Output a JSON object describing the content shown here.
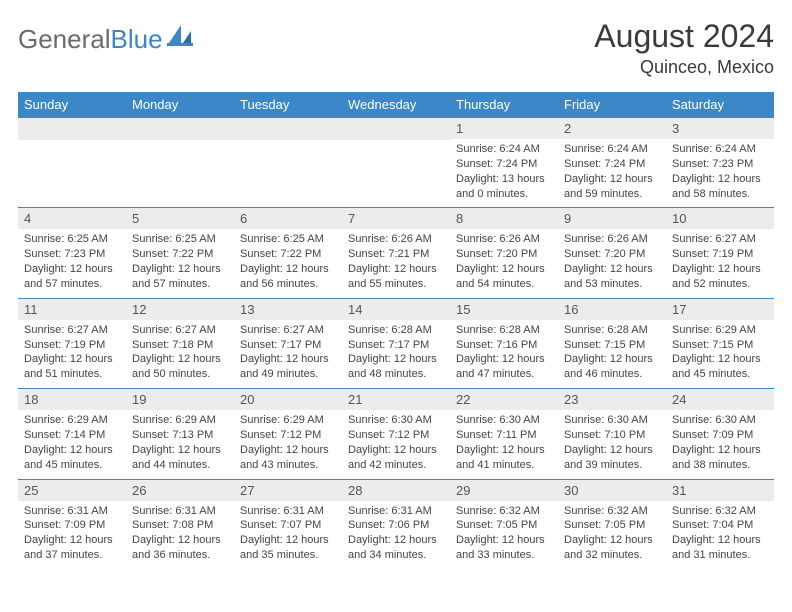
{
  "logo": {
    "textA": "General",
    "textB": "Blue"
  },
  "title": "August 2024",
  "subtitle": "Quinceo, Mexico",
  "colors": {
    "header_bg": "#3b87c8",
    "header_fg": "#ffffff",
    "daynum_bg": "#ececec",
    "row_border": "#3b87c8",
    "text": "#444444"
  },
  "weekdays": [
    "Sunday",
    "Monday",
    "Tuesday",
    "Wednesday",
    "Thursday",
    "Friday",
    "Saturday"
  ],
  "weeks": [
    [
      null,
      null,
      null,
      null,
      {
        "n": "1",
        "sr": "6:24 AM",
        "ss": "7:24 PM",
        "dl": "13 hours and 0 minutes."
      },
      {
        "n": "2",
        "sr": "6:24 AM",
        "ss": "7:24 PM",
        "dl": "12 hours and 59 minutes."
      },
      {
        "n": "3",
        "sr": "6:24 AM",
        "ss": "7:23 PM",
        "dl": "12 hours and 58 minutes."
      }
    ],
    [
      {
        "n": "4",
        "sr": "6:25 AM",
        "ss": "7:23 PM",
        "dl": "12 hours and 57 minutes."
      },
      {
        "n": "5",
        "sr": "6:25 AM",
        "ss": "7:22 PM",
        "dl": "12 hours and 57 minutes."
      },
      {
        "n": "6",
        "sr": "6:25 AM",
        "ss": "7:22 PM",
        "dl": "12 hours and 56 minutes."
      },
      {
        "n": "7",
        "sr": "6:26 AM",
        "ss": "7:21 PM",
        "dl": "12 hours and 55 minutes."
      },
      {
        "n": "8",
        "sr": "6:26 AM",
        "ss": "7:20 PM",
        "dl": "12 hours and 54 minutes."
      },
      {
        "n": "9",
        "sr": "6:26 AM",
        "ss": "7:20 PM",
        "dl": "12 hours and 53 minutes."
      },
      {
        "n": "10",
        "sr": "6:27 AM",
        "ss": "7:19 PM",
        "dl": "12 hours and 52 minutes."
      }
    ],
    [
      {
        "n": "11",
        "sr": "6:27 AM",
        "ss": "7:19 PM",
        "dl": "12 hours and 51 minutes."
      },
      {
        "n": "12",
        "sr": "6:27 AM",
        "ss": "7:18 PM",
        "dl": "12 hours and 50 minutes."
      },
      {
        "n": "13",
        "sr": "6:27 AM",
        "ss": "7:17 PM",
        "dl": "12 hours and 49 minutes."
      },
      {
        "n": "14",
        "sr": "6:28 AM",
        "ss": "7:17 PM",
        "dl": "12 hours and 48 minutes."
      },
      {
        "n": "15",
        "sr": "6:28 AM",
        "ss": "7:16 PM",
        "dl": "12 hours and 47 minutes."
      },
      {
        "n": "16",
        "sr": "6:28 AM",
        "ss": "7:15 PM",
        "dl": "12 hours and 46 minutes."
      },
      {
        "n": "17",
        "sr": "6:29 AM",
        "ss": "7:15 PM",
        "dl": "12 hours and 45 minutes."
      }
    ],
    [
      {
        "n": "18",
        "sr": "6:29 AM",
        "ss": "7:14 PM",
        "dl": "12 hours and 45 minutes."
      },
      {
        "n": "19",
        "sr": "6:29 AM",
        "ss": "7:13 PM",
        "dl": "12 hours and 44 minutes."
      },
      {
        "n": "20",
        "sr": "6:29 AM",
        "ss": "7:12 PM",
        "dl": "12 hours and 43 minutes."
      },
      {
        "n": "21",
        "sr": "6:30 AM",
        "ss": "7:12 PM",
        "dl": "12 hours and 42 minutes."
      },
      {
        "n": "22",
        "sr": "6:30 AM",
        "ss": "7:11 PM",
        "dl": "12 hours and 41 minutes."
      },
      {
        "n": "23",
        "sr": "6:30 AM",
        "ss": "7:10 PM",
        "dl": "12 hours and 39 minutes."
      },
      {
        "n": "24",
        "sr": "6:30 AM",
        "ss": "7:09 PM",
        "dl": "12 hours and 38 minutes."
      }
    ],
    [
      {
        "n": "25",
        "sr": "6:31 AM",
        "ss": "7:09 PM",
        "dl": "12 hours and 37 minutes."
      },
      {
        "n": "26",
        "sr": "6:31 AM",
        "ss": "7:08 PM",
        "dl": "12 hours and 36 minutes."
      },
      {
        "n": "27",
        "sr": "6:31 AM",
        "ss": "7:07 PM",
        "dl": "12 hours and 35 minutes."
      },
      {
        "n": "28",
        "sr": "6:31 AM",
        "ss": "7:06 PM",
        "dl": "12 hours and 34 minutes."
      },
      {
        "n": "29",
        "sr": "6:32 AM",
        "ss": "7:05 PM",
        "dl": "12 hours and 33 minutes."
      },
      {
        "n": "30",
        "sr": "6:32 AM",
        "ss": "7:05 PM",
        "dl": "12 hours and 32 minutes."
      },
      {
        "n": "31",
        "sr": "6:32 AM",
        "ss": "7:04 PM",
        "dl": "12 hours and 31 minutes."
      }
    ]
  ],
  "labels": {
    "sunrise": "Sunrise: ",
    "sunset": "Sunset: ",
    "daylight": "Daylight: "
  }
}
